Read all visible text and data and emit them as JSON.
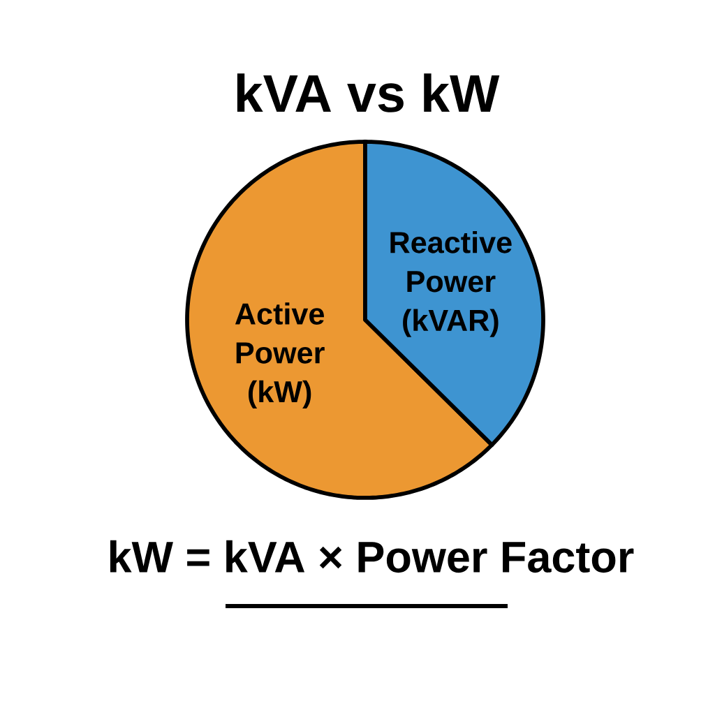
{
  "chart_data": {
    "type": "pie",
    "title": "kVA vs kW",
    "categories": [
      "Active Power (kW)",
      "Reactive Power (kVAR)"
    ],
    "values": [
      62.6,
      37.4
    ],
    "colors": [
      "#ec9832",
      "#3e94d1"
    ],
    "annotations": [
      "kW = kVA × Power Factor"
    ]
  }
}
